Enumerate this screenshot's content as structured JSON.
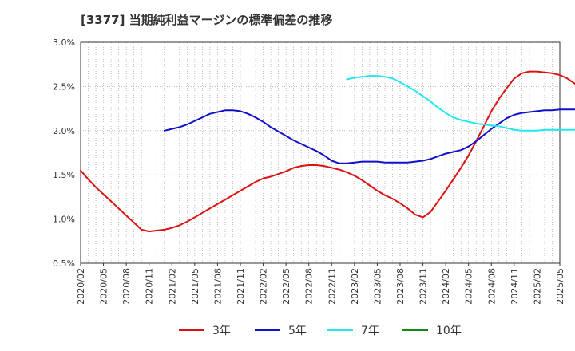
{
  "title": "[3377]  当期純利益マージンの標準偏差の推移",
  "colors": {
    "3年": "#dd1111",
    "5年": "#1111cc",
    "7年": "#22e8ee",
    "10年": "#118811",
    "grid": "#999999",
    "axis": "#333333"
  },
  "chart_data": {
    "type": "line",
    "x_tick_labels": [
      "2020/02",
      "2020/05",
      "2020/08",
      "2020/11",
      "2021/02",
      "2021/05",
      "2021/08",
      "2021/11",
      "2022/02",
      "2022/05",
      "2022/08",
      "2022/11",
      "2023/02",
      "2023/05",
      "2023/08",
      "2023/11",
      "2024/02",
      "2024/05",
      "2024/08",
      "2024/11",
      "2025/02",
      "2025/05"
    ],
    "y_tick_labels": [
      "0.5%",
      "1.0%",
      "1.5%",
      "2.0%",
      "2.5%",
      "3.0%"
    ],
    "ylim": [
      0.5,
      3.0
    ],
    "y_unit": "%",
    "grid": true,
    "legend_position": "bottom",
    "series": [
      {
        "name": "3年",
        "color_key": "3年",
        "points": [
          [
            "2020/02",
            1.55
          ],
          [
            "2020/03",
            1.45
          ],
          [
            "2020/04",
            1.36
          ],
          [
            "2020/05",
            1.28
          ],
          [
            "2020/06",
            1.2
          ],
          [
            "2020/07",
            1.12
          ],
          [
            "2020/08",
            1.04
          ],
          [
            "2020/09",
            0.96
          ],
          [
            "2020/10",
            0.88
          ],
          [
            "2020/11",
            0.86
          ],
          [
            "2020/12",
            0.87
          ],
          [
            "2021/01",
            0.88
          ],
          [
            "2021/02",
            0.9
          ],
          [
            "2021/03",
            0.93
          ],
          [
            "2021/04",
            0.97
          ],
          [
            "2021/05",
            1.02
          ],
          [
            "2021/06",
            1.07
          ],
          [
            "2021/07",
            1.12
          ],
          [
            "2021/08",
            1.17
          ],
          [
            "2021/09",
            1.22
          ],
          [
            "2021/10",
            1.27
          ],
          [
            "2021/11",
            1.32
          ],
          [
            "2021/12",
            1.37
          ],
          [
            "2022/01",
            1.42
          ],
          [
            "2022/02",
            1.46
          ],
          [
            "2022/03",
            1.48
          ],
          [
            "2022/04",
            1.51
          ],
          [
            "2022/05",
            1.54
          ],
          [
            "2022/06",
            1.58
          ],
          [
            "2022/07",
            1.6
          ],
          [
            "2022/08",
            1.61
          ],
          [
            "2022/09",
            1.61
          ],
          [
            "2022/10",
            1.6
          ],
          [
            "2022/11",
            1.58
          ],
          [
            "2022/12",
            1.56
          ],
          [
            "2023/01",
            1.53
          ],
          [
            "2023/02",
            1.49
          ],
          [
            "2023/03",
            1.44
          ],
          [
            "2023/04",
            1.38
          ],
          [
            "2023/05",
            1.32
          ],
          [
            "2023/06",
            1.27
          ],
          [
            "2023/07",
            1.23
          ],
          [
            "2023/08",
            1.18
          ],
          [
            "2023/09",
            1.12
          ],
          [
            "2023/10",
            1.05
          ],
          [
            "2023/11",
            1.02
          ],
          [
            "2023/12",
            1.08
          ],
          [
            "2024/01",
            1.2
          ],
          [
            "2024/02",
            1.32
          ],
          [
            "2024/03",
            1.45
          ],
          [
            "2024/04",
            1.58
          ],
          [
            "2024/05",
            1.72
          ],
          [
            "2024/06",
            1.88
          ],
          [
            "2024/07",
            2.05
          ],
          [
            "2024/08",
            2.22
          ],
          [
            "2024/09",
            2.36
          ],
          [
            "2024/10",
            2.48
          ],
          [
            "2024/11",
            2.59
          ],
          [
            "2024/12",
            2.65
          ],
          [
            "2025/01",
            2.67
          ],
          [
            "2025/02",
            2.67
          ],
          [
            "2025/03",
            2.66
          ],
          [
            "2025/04",
            2.65
          ],
          [
            "2025/05",
            2.63
          ],
          [
            "2025/06",
            2.59
          ],
          [
            "2025/07",
            2.53
          ],
          [
            "2025/08",
            2.46
          ]
        ]
      },
      {
        "name": "5年",
        "color_key": "5年",
        "points": [
          [
            "2021/01",
            2.0
          ],
          [
            "2021/02",
            2.02
          ],
          [
            "2021/03",
            2.04
          ],
          [
            "2021/04",
            2.07
          ],
          [
            "2021/05",
            2.11
          ],
          [
            "2021/06",
            2.15
          ],
          [
            "2021/07",
            2.19
          ],
          [
            "2021/08",
            2.21
          ],
          [
            "2021/09",
            2.23
          ],
          [
            "2021/10",
            2.23
          ],
          [
            "2021/11",
            2.22
          ],
          [
            "2021/12",
            2.19
          ],
          [
            "2022/01",
            2.15
          ],
          [
            "2022/02",
            2.1
          ],
          [
            "2022/03",
            2.04
          ],
          [
            "2022/04",
            1.99
          ],
          [
            "2022/05",
            1.94
          ],
          [
            "2022/06",
            1.89
          ],
          [
            "2022/07",
            1.85
          ],
          [
            "2022/08",
            1.81
          ],
          [
            "2022/09",
            1.77
          ],
          [
            "2022/10",
            1.72
          ],
          [
            "2022/11",
            1.66
          ],
          [
            "2022/12",
            1.63
          ],
          [
            "2023/01",
            1.63
          ],
          [
            "2023/02",
            1.64
          ],
          [
            "2023/03",
            1.65
          ],
          [
            "2023/04",
            1.65
          ],
          [
            "2023/05",
            1.65
          ],
          [
            "2023/06",
            1.64
          ],
          [
            "2023/07",
            1.64
          ],
          [
            "2023/08",
            1.64
          ],
          [
            "2023/09",
            1.64
          ],
          [
            "2023/10",
            1.65
          ],
          [
            "2023/11",
            1.66
          ],
          [
            "2023/12",
            1.68
          ],
          [
            "2024/01",
            1.71
          ],
          [
            "2024/02",
            1.74
          ],
          [
            "2024/03",
            1.76
          ],
          [
            "2024/04",
            1.78
          ],
          [
            "2024/05",
            1.82
          ],
          [
            "2024/06",
            1.88
          ],
          [
            "2024/07",
            1.95
          ],
          [
            "2024/08",
            2.02
          ],
          [
            "2024/09",
            2.08
          ],
          [
            "2024/10",
            2.14
          ],
          [
            "2024/11",
            2.18
          ],
          [
            "2024/12",
            2.2
          ],
          [
            "2025/01",
            2.21
          ],
          [
            "2025/02",
            2.22
          ],
          [
            "2025/03",
            2.23
          ],
          [
            "2025/04",
            2.23
          ],
          [
            "2025/05",
            2.24
          ],
          [
            "2025/06",
            2.24
          ],
          [
            "2025/07",
            2.24
          ],
          [
            "2025/08",
            2.24
          ]
        ]
      },
      {
        "name": "7年",
        "color_key": "7年",
        "points": [
          [
            "2023/01",
            2.58
          ],
          [
            "2023/02",
            2.6
          ],
          [
            "2023/03",
            2.61
          ],
          [
            "2023/04",
            2.62
          ],
          [
            "2023/05",
            2.62
          ],
          [
            "2023/06",
            2.61
          ],
          [
            "2023/07",
            2.59
          ],
          [
            "2023/08",
            2.55
          ],
          [
            "2023/09",
            2.5
          ],
          [
            "2023/10",
            2.45
          ],
          [
            "2023/11",
            2.39
          ],
          [
            "2023/12",
            2.33
          ],
          [
            "2024/01",
            2.26
          ],
          [
            "2024/02",
            2.2
          ],
          [
            "2024/03",
            2.15
          ],
          [
            "2024/04",
            2.12
          ],
          [
            "2024/05",
            2.1
          ],
          [
            "2024/06",
            2.08
          ],
          [
            "2024/07",
            2.07
          ],
          [
            "2024/08",
            2.06
          ],
          [
            "2024/09",
            2.05
          ],
          [
            "2024/10",
            2.03
          ],
          [
            "2024/11",
            2.01
          ],
          [
            "2024/12",
            2.0
          ],
          [
            "2025/01",
            2.0
          ],
          [
            "2025/02",
            2.0
          ],
          [
            "2025/03",
            2.01
          ],
          [
            "2025/04",
            2.01
          ],
          [
            "2025/05",
            2.01
          ],
          [
            "2025/06",
            2.01
          ],
          [
            "2025/07",
            2.01
          ],
          [
            "2025/08",
            2.01
          ]
        ]
      },
      {
        "name": "10年",
        "color_key": "10年",
        "points": []
      }
    ]
  }
}
